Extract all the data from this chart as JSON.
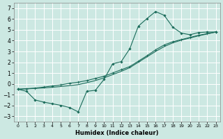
{
  "xlabel": "Humidex (Indice chaleur)",
  "bg_color": "#cce8e2",
  "grid_color": "#b8d8d0",
  "line_color": "#1a6b5a",
  "xlim": [
    -0.5,
    23.5
  ],
  "ylim": [
    -3.5,
    7.5
  ],
  "xticks": [
    0,
    1,
    2,
    3,
    4,
    5,
    6,
    7,
    8,
    9,
    10,
    11,
    12,
    13,
    14,
    15,
    16,
    17,
    18,
    19,
    20,
    21,
    22,
    23
  ],
  "yticks": [
    -3,
    -2,
    -1,
    0,
    1,
    2,
    3,
    4,
    5,
    6,
    7
  ],
  "line1_x": [
    0,
    1,
    2,
    3,
    4,
    5,
    6,
    7,
    8,
    9,
    10,
    11,
    12,
    13,
    14,
    15,
    16,
    17,
    18,
    19,
    20,
    21,
    22,
    23
  ],
  "line1_y": [
    -0.5,
    -0.7,
    -1.5,
    -1.7,
    -1.85,
    -2.0,
    -2.2,
    -2.6,
    -0.7,
    -0.6,
    0.4,
    1.85,
    2.05,
    3.25,
    5.35,
    6.05,
    6.7,
    6.35,
    5.25,
    4.7,
    4.55,
    4.75,
    4.8,
    4.8
  ],
  "line2_x": [
    0,
    1,
    2,
    3,
    4,
    5,
    6,
    7,
    8,
    9,
    10,
    11,
    12,
    13,
    14,
    15,
    16,
    17,
    18,
    19,
    20,
    21,
    22,
    23
  ],
  "line2_y": [
    -0.5,
    -0.45,
    -0.4,
    -0.3,
    -0.2,
    -0.1,
    0.05,
    0.15,
    0.3,
    0.5,
    0.7,
    1.0,
    1.3,
    1.6,
    2.1,
    2.6,
    3.15,
    3.6,
    3.9,
    4.1,
    4.3,
    4.5,
    4.65,
    4.8
  ],
  "line3_x": [
    0,
    1,
    2,
    3,
    4,
    5,
    6,
    7,
    8,
    9,
    10,
    11,
    12,
    13,
    14,
    15,
    16,
    17,
    18,
    19,
    20,
    21,
    22,
    23
  ],
  "line3_y": [
    -0.5,
    -0.47,
    -0.43,
    -0.38,
    -0.32,
    -0.25,
    -0.17,
    -0.08,
    0.1,
    0.3,
    0.55,
    0.85,
    1.15,
    1.5,
    2.0,
    2.5,
    3.0,
    3.45,
    3.8,
    4.05,
    4.25,
    4.45,
    4.62,
    4.8
  ]
}
